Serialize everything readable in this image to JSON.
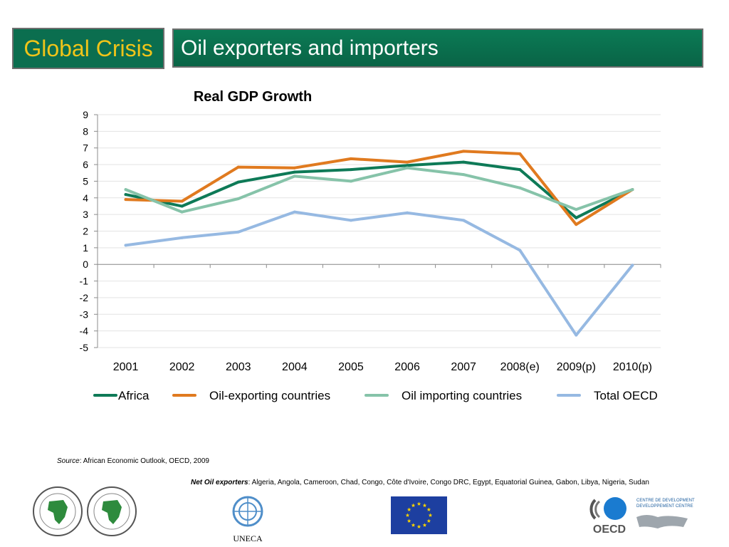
{
  "header": {
    "left_title": "Global Crisis",
    "right_title": "Oil exporters and importers"
  },
  "chart_data": {
    "type": "line",
    "title": "Real GDP Growth",
    "xlabel": "",
    "ylabel": "",
    "categories": [
      "2001",
      "2002",
      "2003",
      "2004",
      "2005",
      "2006",
      "2007",
      "2008(e)",
      "2009(p)",
      "2010(p)"
    ],
    "ylim": [
      -5,
      9
    ],
    "yticks": [
      9,
      8,
      7,
      6,
      5,
      4,
      3,
      2,
      1,
      0,
      -1,
      -2,
      -3,
      -4,
      -5
    ],
    "grid": true,
    "legend_position": "bottom",
    "series": [
      {
        "name": "Africa",
        "color": "#0e7a57",
        "values": [
          4.2,
          3.5,
          4.95,
          5.55,
          5.7,
          5.95,
          6.15,
          5.7,
          2.8,
          4.5
        ]
      },
      {
        "name": "Oil-exporting countries",
        "color": "#e07a1f",
        "values": [
          3.9,
          3.8,
          5.85,
          5.8,
          6.35,
          6.15,
          6.8,
          6.65,
          2.4,
          4.5
        ]
      },
      {
        "name": "Oil importing countries",
        "color": "#86c3a9",
        "values": [
          4.5,
          3.15,
          3.95,
          5.3,
          5.0,
          5.8,
          5.4,
          4.6,
          3.3,
          4.5
        ]
      },
      {
        "name": "Total OECD",
        "color": "#96b9e2",
        "values": [
          1.15,
          1.6,
          1.95,
          3.15,
          2.65,
          3.1,
          2.65,
          0.85,
          -4.25,
          -0.05
        ]
      }
    ]
  },
  "source": {
    "label": "Source",
    "text": ": African Economic Outlook, OECD, 2009"
  },
  "net_exporters": {
    "label": "Net Oil exporters",
    "text": ": Algeria, Angola, Cameroon, Chad, Congo, Côte d'Ivoire,  Congo DRC, Egypt, Equatorial Guinea, Gabon, Libya, Nigeria, Sudan"
  },
  "logos": {
    "uneca": "UNECA",
    "oecd": "OECD",
    "oecd_centre_line1": "CENTRE DE DEVELOPMENT",
    "oecd_centre_line2": "DEVELOPPEMENT CENTRE"
  }
}
